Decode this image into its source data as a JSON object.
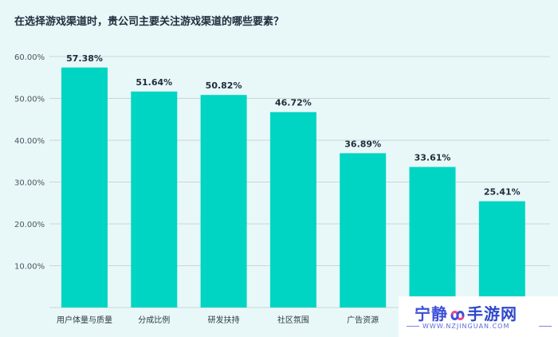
{
  "chart_data": {
    "type": "bar",
    "title": "在选择游戏渠道时，贵公司主要关注游戏渠道的哪些要素？",
    "categories": [
      "用户体量与质量",
      "分成比例",
      "研发扶持",
      "社区氛围",
      "广告资源",
      "",
      ""
    ],
    "values": [
      57.38,
      51.64,
      50.82,
      46.72,
      36.89,
      33.61,
      25.41
    ],
    "value_labels": [
      "57.38%",
      "51.64%",
      "50.82%",
      "46.72%",
      "36.89%",
      "33.61%",
      "25.41%"
    ],
    "yticks": [
      "10.00%",
      "20.00%",
      "30.00%",
      "40.00%",
      "50.00%",
      "60.00%"
    ],
    "ylim": [
      0,
      60
    ],
    "grid": true,
    "bar_color": "#00d5c3"
  },
  "watermark": {
    "name_left": "宁静",
    "name_right": "手游网",
    "url": "WWW.NZJINGUAN.COM"
  }
}
